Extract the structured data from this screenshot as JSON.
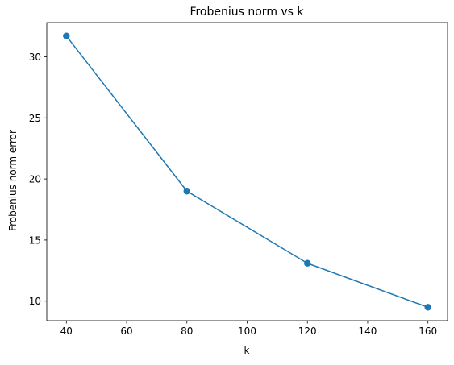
{
  "chart_data": {
    "type": "line",
    "title": "Frobenius norm vs k",
    "xlabel": "k",
    "ylabel": "Frobenius norm error",
    "x": [
      40,
      80,
      120,
      160
    ],
    "series": [
      {
        "values": [
          31.7,
          19.0,
          13.1,
          9.5
        ],
        "color": "#1f77b4",
        "marker": "circle"
      }
    ],
    "xlim": [
      33.5,
      166.5
    ],
    "ylim": [
      8.4,
      32.8
    ],
    "xticks": [
      40,
      60,
      80,
      100,
      120,
      140,
      160
    ],
    "yticks": [
      10,
      15,
      20,
      25,
      30
    ],
    "grid": false
  }
}
